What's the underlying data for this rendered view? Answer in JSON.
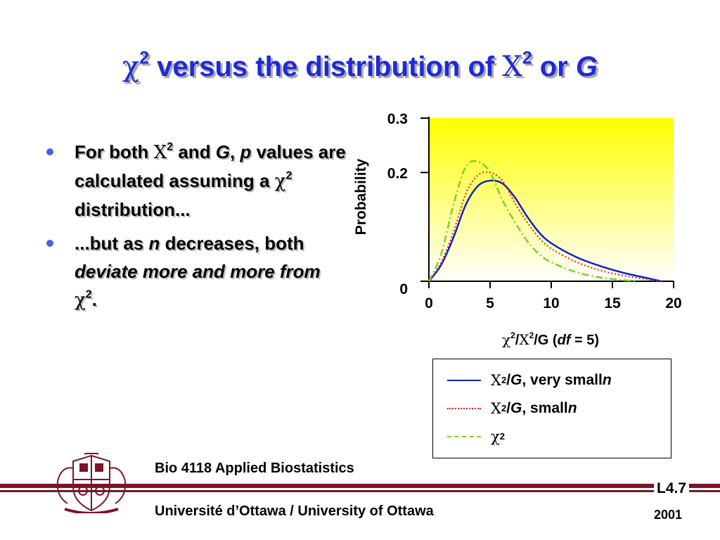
{
  "slide": {
    "title": {
      "chi_symbol": "χ",
      "sup1": "2",
      "text": " versus the distribution of ",
      "X_symbol": "X",
      "sup2": "2",
      "or_text": " or ",
      "G": "G"
    },
    "bullets": [
      {
        "p1": "For both ",
        "X": "X",
        "sup": "2",
        "p2": " and ",
        "G": "G",
        "comma": ", ",
        "p": "p",
        "p3": " values are calculated assuming a ",
        "chi": "χ",
        "sup2": "2",
        "p4": " distribution..."
      },
      {
        "p1": "...but as ",
        "n": "n",
        "p2": " decreases, both ",
        "deviate": "deviate more and more from",
        "sp": " ",
        "chi": "χ",
        "sup": "2",
        "end": "."
      }
    ],
    "legend": [
      {
        "sym": "X",
        "sup": "2",
        "slash": "/",
        "G": "G",
        "text": ", very small ",
        "n": "n"
      },
      {
        "sym": "X",
        "sup": "2",
        "slash": "/",
        "G": "G",
        "text": ", small ",
        "n": "n"
      },
      {
        "sym": "χ",
        "sup": "2"
      }
    ],
    "footer": {
      "course": "Bio 4118 Applied Biostatistics",
      "university": "Université d’Ottawa / University of Ottawa",
      "lecture": "L4.7",
      "year": "2001"
    },
    "colors": {
      "title": "#1f2ad6",
      "bullet_dot": "#4c5fe0",
      "footer_bar": "#7a1428",
      "plot_gradient_top": "#ffff00",
      "plot_gradient_bottom": "#ffffff"
    }
  },
  "chart_data": {
    "type": "line",
    "ylabel": "Probability",
    "xlabel_parts": {
      "chi": "χ",
      "sup1": "2",
      "slash1": "/",
      "X": "X",
      "sup2": "2",
      "rest": "/G (",
      "df": "df",
      "eq": " = 5)"
    },
    "xlim": [
      0,
      20
    ],
    "ylim": [
      0,
      0.3
    ],
    "x_ticks": [
      "0",
      "5",
      "10",
      "15",
      "20"
    ],
    "y_ticks": [
      "0",
      "0.2",
      "0.3"
    ],
    "x_tick_values": [
      0,
      5,
      10,
      15,
      20
    ],
    "y_tick_values": [
      0,
      0.2,
      0.3
    ],
    "series": [
      {
        "name": "X²/G, very small n",
        "color": "#1020c8",
        "style": "solid",
        "x": [
          0,
          1,
          2,
          3,
          4,
          5,
          6,
          7,
          8,
          9,
          10,
          12,
          14,
          16,
          18,
          19
        ],
        "y": [
          0,
          0.03,
          0.08,
          0.14,
          0.175,
          0.185,
          0.18,
          0.155,
          0.12,
          0.09,
          0.07,
          0.045,
          0.028,
          0.015,
          0.005,
          0
        ]
      },
      {
        "name": "X²/G, small n",
        "color": "#e02020",
        "style": "dotted",
        "x": [
          0,
          1,
          2,
          3,
          4,
          5,
          6,
          7,
          8,
          9,
          10,
          12,
          14,
          16,
          18,
          19
        ],
        "y": [
          0,
          0.035,
          0.09,
          0.16,
          0.195,
          0.2,
          0.185,
          0.145,
          0.11,
          0.08,
          0.06,
          0.036,
          0.02,
          0.01,
          0.003,
          0
        ]
      },
      {
        "name": "χ²",
        "color": "#7ccf2a",
        "style": "dashdot",
        "x": [
          0,
          1,
          2,
          3,
          4,
          5,
          6,
          7,
          8,
          9,
          10,
          12,
          14,
          16,
          17
        ],
        "y": [
          0,
          0.05,
          0.14,
          0.21,
          0.22,
          0.2,
          0.15,
          0.11,
          0.075,
          0.05,
          0.035,
          0.017,
          0.007,
          0.002,
          0
        ]
      }
    ]
  }
}
